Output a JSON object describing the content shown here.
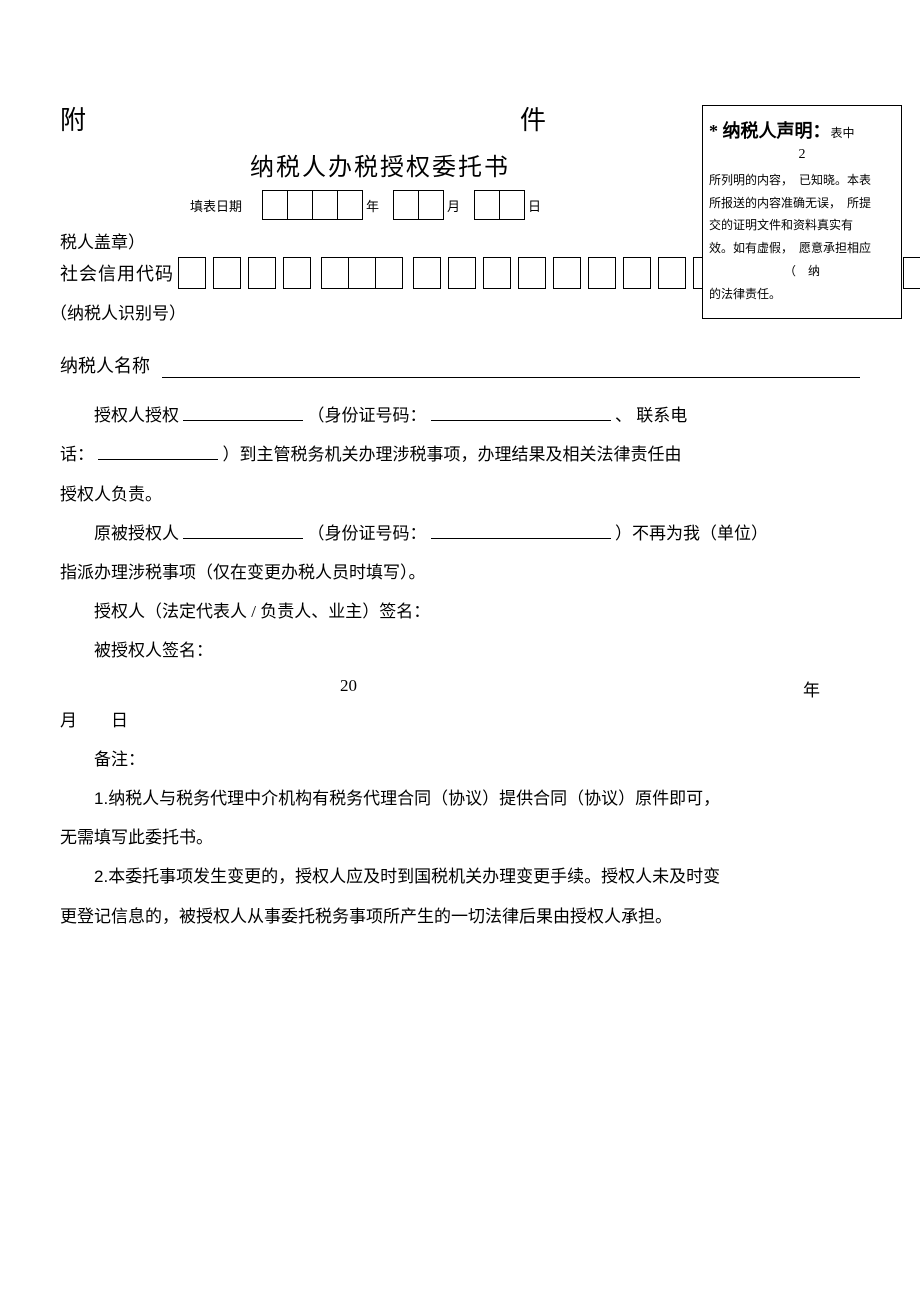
{
  "declaration": {
    "title_prefix": "*",
    "title": "纳税人声明：",
    "title_suffix": "表中",
    "number": "2",
    "line1": "所列明的内容，",
    "line1b": "已知晓。本表",
    "line2": "所报送的内容准确无误，",
    "line2b": "所提",
    "line3": "交的证明文件和资料真实有",
    "line4a": "效。如有虚假，",
    "line4b": "愿意承担相应",
    "paren": "（　纳",
    "line5": "的法律责任。"
  },
  "header": {
    "attachment_left": "附",
    "attachment_right": "件",
    "title": "纳税人办税授权委托书",
    "date_label": "填表日期",
    "year_unit": "年",
    "month_unit": "月",
    "day_unit": "日"
  },
  "seal_label": "税人盖章）",
  "code_label": "社会信用代码",
  "id_label": "（纳税人识别号）",
  "name_label": "纳税人名称",
  "auth": {
    "p1_a": "授权人授权",
    "p1_b": "（身份证号码：",
    "p1_c": "、 联系电",
    "p2_a": "话：",
    "p2_b": "）到主管税务机关办理涉税事项，办理结果及相关法律责任由",
    "p3": "授权人负责。",
    "p4_a": "原被授权人",
    "p4_b": "（身份证号码：",
    "p4_c": "）不再为我（单位）",
    "p5": "指派办理涉税事项（仅在变更办税人员时填写）。",
    "p6": "授权人（法定代表人 / 负责人、业主）签名：",
    "p7": "被授权人签名：",
    "date_20": "20",
    "date_year": "年",
    "date_md": "月　　日"
  },
  "notes": {
    "heading": "备注：",
    "n1a": "1.",
    "n1": "纳税人与税务代理中介机构有税务代理合同（协议）提供合同（协议）原件即可，",
    "n1b": "无需填写此委托书。",
    "n2a": "2.",
    "n2": "本委托事项发生变更的，授权人应及时到国税机关办理变更手续。授权人未及时变",
    "n2b": "更登记信息的，被授权人从事委托税务事项所产生的一切法律后果由授权人承担。"
  },
  "boxes": {
    "year_count": 4,
    "month_count": 2,
    "day_count": 2,
    "code_groups": [
      1,
      1,
      1,
      1,
      3,
      1,
      1,
      1,
      1,
      1,
      1,
      1,
      1,
      1,
      1,
      1,
      1,
      1,
      1,
      1,
      1
    ]
  }
}
